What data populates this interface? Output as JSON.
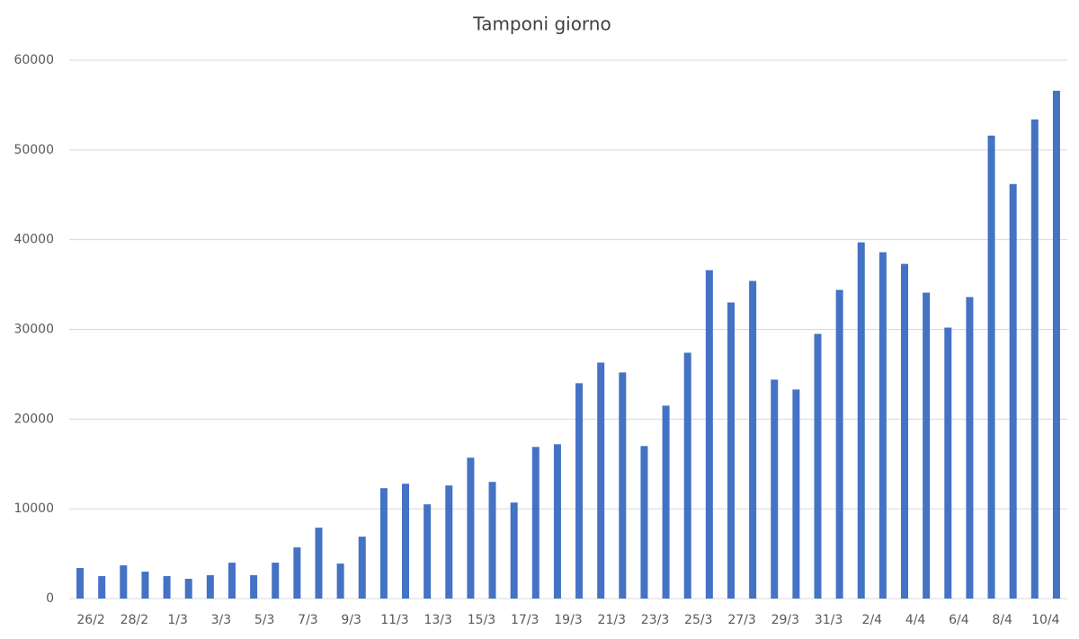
{
  "chart_data": {
    "type": "bar",
    "title": "Tamponi giorno",
    "categories": [
      "26/2",
      null,
      "28/2",
      null,
      "1/3",
      null,
      "3/3",
      null,
      "5/3",
      null,
      "7/3",
      null,
      "9/3",
      null,
      "11/3",
      null,
      "13/3",
      null,
      "15/3",
      null,
      "17/3",
      null,
      "19/3",
      null,
      "21/3",
      null,
      "23/3",
      null,
      "25/3",
      null,
      "27/3",
      null,
      "29/3",
      null,
      "31/3",
      null,
      "2/4",
      null,
      "4/4",
      null,
      "6/4",
      null,
      "8/4",
      null,
      "10/4",
      null
    ],
    "values": [
      3400,
      2500,
      3700,
      3000,
      2500,
      2200,
      2600,
      4000,
      2600,
      4000,
      5700,
      7900,
      3900,
      6900,
      12300,
      12800,
      10500,
      12600,
      15700,
      13000,
      10700,
      16900,
      17200,
      24000,
      26300,
      25200,
      17000,
      21500,
      27400,
      36600,
      33000,
      35400,
      24400,
      23300,
      29500,
      34400,
      39700,
      38600,
      37300,
      34100,
      30200,
      33600,
      51600,
      46200,
      53400,
      56600
    ],
    "color": "#4472c4",
    "ylim": [
      0,
      60000
    ],
    "yticks": [
      0,
      10000,
      20000,
      30000,
      40000,
      50000,
      60000
    ],
    "grid": true
  }
}
